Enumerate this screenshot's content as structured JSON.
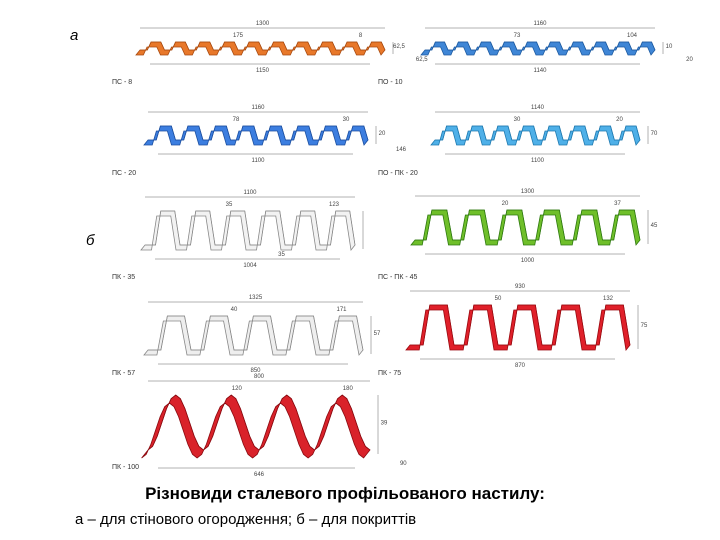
{
  "marks": {
    "a": "а",
    "b": "б"
  },
  "panels": [
    {
      "name": "ПС - 8",
      "dims": [
        "1300",
        "175",
        "62,5",
        "8",
        "62,5",
        "1150"
      ]
    },
    {
      "name": "ПО - 10",
      "dims": [
        "1160",
        "73",
        "10",
        "104",
        "20",
        "1140"
      ]
    },
    {
      "name": "ПС - 20",
      "dims": [
        "1160",
        "78",
        "20",
        "30",
        "146",
        "1100"
      ]
    },
    {
      "name": "ПО - ПК - 20",
      "dims": [
        "1140",
        "30",
        "70",
        "20",
        "1100"
      ]
    },
    {
      "name": "ПК - 35",
      "dims": [
        "1100",
        "35",
        "35",
        "123",
        "1004"
      ]
    },
    {
      "name": "ПС - ПК - 45",
      "dims": [
        "1300",
        "20",
        "45",
        "37",
        "1000"
      ]
    },
    {
      "name": "ПК - 57",
      "dims": [
        "1325",
        "40",
        "57",
        "171",
        "850"
      ]
    },
    {
      "name": "ПК - 75",
      "dims": [
        "930",
        "50",
        "75",
        "132",
        "870"
      ]
    },
    {
      "name": "ПК - 100",
      "dims": [
        "800",
        "120",
        "39",
        "180",
        "90",
        "646"
      ]
    }
  ],
  "caption": {
    "title": "Різновиди сталевого профільованого настилу:",
    "subtitle": "а – для стінового огородження; б – для покриттів"
  }
}
